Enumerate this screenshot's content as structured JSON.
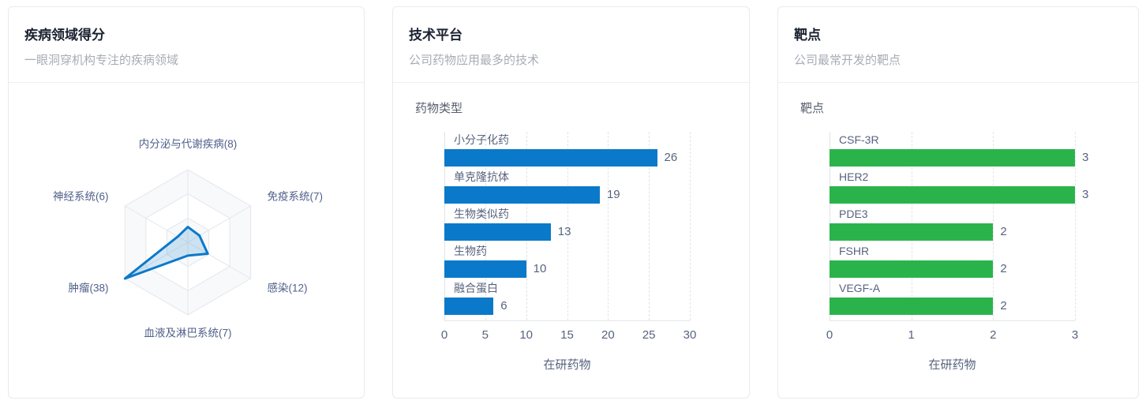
{
  "cards": [
    {
      "title": "疾病领域得分",
      "subtitle": "一眼洞穿机构专注的疾病领域"
    },
    {
      "title": "技术平台",
      "subtitle": "公司药物应用最多的技术"
    },
    {
      "title": "靶点",
      "subtitle": "公司最常开发的靶点"
    }
  ],
  "colors": {
    "bar_blue": "#0b79ca",
    "bar_green": "#2bb34b",
    "radar_stroke": "#0b79ca",
    "radar_fill": "rgba(11,121,202,0.18)",
    "grid_line": "#e3e6ec",
    "band_a": "#f8f9fb",
    "band_b": "#ffffff",
    "text_slate": "#57637e",
    "radar_label": "#51608a"
  },
  "chart_data": [
    {
      "type": "radar",
      "title": "疾病领域得分",
      "max": 38,
      "rings": 3,
      "indicators": [
        {
          "name": "内分泌与代谢疾病",
          "value": 8,
          "label": "内分泌与代谢疾病(8)"
        },
        {
          "name": "免疫系统",
          "value": 7,
          "label": "免疫系统(7)"
        },
        {
          "name": "感染",
          "value": 12,
          "label": "感染(12)"
        },
        {
          "name": "血液及淋巴系统",
          "value": 7,
          "label": "血液及淋巴系统(7)"
        },
        {
          "name": "肿瘤",
          "value": 38,
          "label": "肿瘤(38)"
        },
        {
          "name": "神经系统",
          "value": 6,
          "label": "神经系统(6)"
        }
      ]
    },
    {
      "type": "bar",
      "orientation": "horizontal",
      "label": "药物类型",
      "categories": [
        "小分子化药",
        "单克隆抗体",
        "生物类似药",
        "生物药",
        "融合蛋白"
      ],
      "values": [
        26,
        19,
        13,
        10,
        6
      ],
      "xlabel": "在研药物",
      "xticks": [
        "0",
        "5",
        "10",
        "15",
        "20",
        "25",
        "30"
      ],
      "xlim": [
        0,
        30
      ],
      "grid": true,
      "bar_color": "#0b79ca"
    },
    {
      "type": "bar",
      "orientation": "horizontal",
      "label": "靶点",
      "categories": [
        "CSF-3R",
        "HER2",
        "PDE3",
        "FSHR",
        "VEGF-A"
      ],
      "values": [
        3,
        3,
        2,
        2,
        2
      ],
      "xlabel": "在研药物",
      "xticks": [
        "0",
        "1",
        "2",
        "3"
      ],
      "xlim": [
        0,
        3
      ],
      "grid": true,
      "bar_color": "#2bb34b"
    }
  ]
}
